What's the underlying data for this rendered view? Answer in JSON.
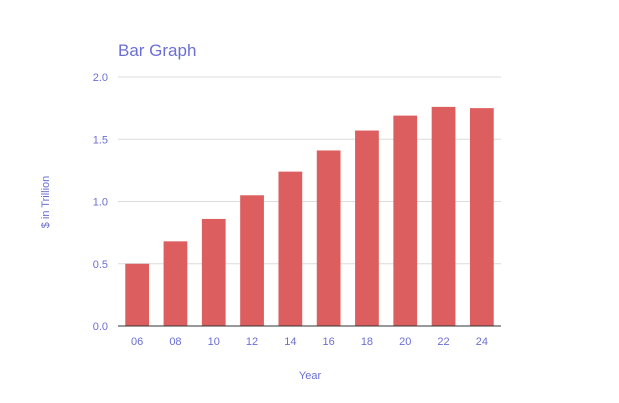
{
  "chart_data": {
    "type": "bar",
    "title": "Bar Graph",
    "xlabel": "Year",
    "ylabel": "$ in Trillion",
    "categories": [
      "06",
      "08",
      "10",
      "12",
      "14",
      "16",
      "18",
      "20",
      "22",
      "24"
    ],
    "values": [
      0.5,
      0.68,
      0.86,
      1.05,
      1.24,
      1.41,
      1.57,
      1.69,
      1.76,
      1.75
    ],
    "ylim": [
      0,
      2.0
    ],
    "yticks": [
      "0.0",
      "0.5",
      "1.0",
      "1.5",
      "2.0"
    ],
    "grid": true,
    "legend": "none",
    "bar_color": "#dc5e5e",
    "text_color": "#6b6fd4",
    "grid_color": "#dcdcdc"
  }
}
